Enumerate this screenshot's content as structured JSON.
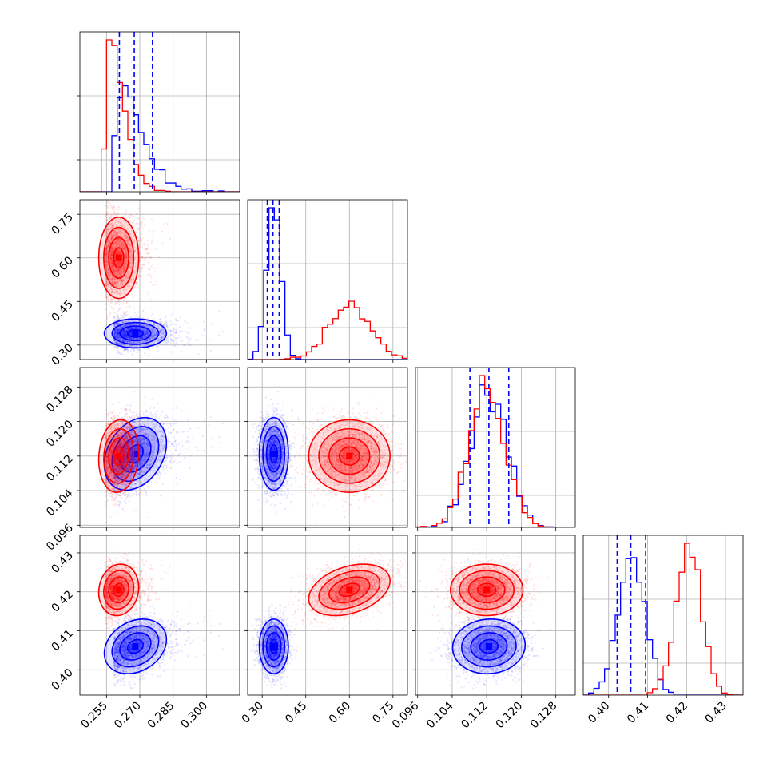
{
  "chart_data": {
    "type": "corner",
    "n_params": 4,
    "grid": true,
    "series": [
      {
        "color": "#0000ff",
        "means": [
          0.268,
          0.34,
          0.1125,
          0.406
        ],
        "sigmas": [
          0.007,
          0.025,
          0.0042,
          0.0035
        ],
        "corr": [
          [
            0,
            2,
            0.3
          ],
          [
            0,
            3,
            0.25
          ],
          [
            2,
            3,
            0.05
          ]
        ]
      },
      {
        "color": "#ff0000",
        "means": [
          0.2605,
          0.6,
          0.112,
          0.4205
        ],
        "sigmas": [
          0.0045,
          0.07,
          0.0042,
          0.0033
        ],
        "corr": [
          [
            0,
            2,
            0.1
          ],
          [
            0,
            3,
            0.1
          ],
          [
            1,
            3,
            0.35
          ]
        ]
      }
    ],
    "params": [
      {
        "range": [
          0.243,
          0.315
        ],
        "ticks": [
          0.255,
          0.27,
          0.285,
          0.3
        ],
        "tick_labels": [
          "0.255",
          "0.270",
          "0.285",
          "0.300"
        ]
      },
      {
        "range": [
          0.25,
          0.8
        ],
        "ticks": [
          0.3,
          0.45,
          0.6,
          0.75
        ],
        "tick_labels": [
          "0.30",
          "0.45",
          "0.60",
          "0.75"
        ]
      },
      {
        "range": [
          0.0955,
          0.1325
        ],
        "ticks": [
          0.096,
          0.104,
          0.112,
          0.12,
          0.128
        ],
        "tick_labels": [
          "0.096",
          "0.104",
          "0.112",
          "0.120",
          "0.128"
        ]
      },
      {
        "range": [
          0.3935,
          0.4345
        ],
        "ticks": [
          0.4,
          0.41,
          0.42,
          0.43
        ],
        "tick_labels": [
          "0.40",
          "0.41",
          "0.42",
          "0.43"
        ]
      }
    ],
    "quantile_lines": [
      {
        "param": 0,
        "values": [
          0.2608,
          0.2675,
          0.2757
        ]
      },
      {
        "param": 1,
        "values": [
          0.3175,
          0.337,
          0.3585
        ]
      },
      {
        "param": 2,
        "values": [
          0.1081,
          0.1125,
          0.1171
        ]
      },
      {
        "param": 3,
        "values": [
          0.4022,
          0.4057,
          0.4095
        ]
      }
    ],
    "quantile_color": "#0000ff"
  }
}
